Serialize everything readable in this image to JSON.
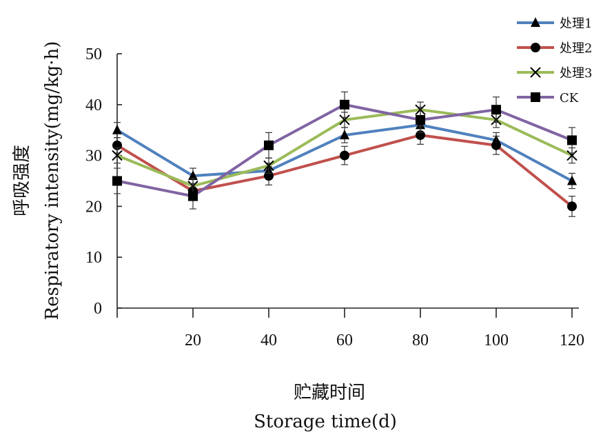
{
  "chart_data": {
    "type": "line",
    "x": [
      0,
      20,
      40,
      60,
      80,
      100,
      120
    ],
    "xticks": [
      20,
      40,
      60,
      80,
      100,
      120
    ],
    "xlim": [
      0,
      120
    ],
    "ylim": [
      0,
      50
    ],
    "yticks": [
      0,
      10,
      20,
      30,
      40,
      50
    ],
    "ylabel_cn": "呼吸强度",
    "ylabel_en": "Respiratory intensity(mg/kg·h)",
    "xlabel_cn": "贮藏时间",
    "xlabel_en": "Storage time(d)",
    "grid": false,
    "legend_position": "top-right",
    "series": [
      {
        "name": "处理1",
        "color": "#4f81bd",
        "marker": "triangle",
        "values": [
          35,
          26,
          27,
          34,
          36,
          33,
          25
        ],
        "errors": [
          1.5,
          1.5,
          1.5,
          1.5,
          1.5,
          1.5,
          1.5
        ]
      },
      {
        "name": "处理2",
        "color": "#c0504d",
        "marker": "circle",
        "values": [
          32,
          23,
          26,
          30,
          34,
          32,
          20
        ],
        "errors": [
          1.5,
          1.5,
          1.8,
          1.8,
          1.8,
          1.8,
          2.0
        ]
      },
      {
        "name": "处理3",
        "color": "#9bbb59",
        "marker": "x",
        "values": [
          30,
          24,
          28,
          37,
          39,
          37,
          30
        ],
        "errors": [
          1.5,
          1.5,
          1.5,
          1.5,
          1.5,
          1.5,
          1.5
        ]
      },
      {
        "name": "CK",
        "color": "#8064a2",
        "marker": "square",
        "values": [
          25,
          22,
          32,
          40,
          37,
          39,
          33
        ],
        "errors": [
          2.5,
          2.5,
          2.5,
          2.5,
          2.5,
          2.5,
          2.5
        ]
      }
    ]
  }
}
